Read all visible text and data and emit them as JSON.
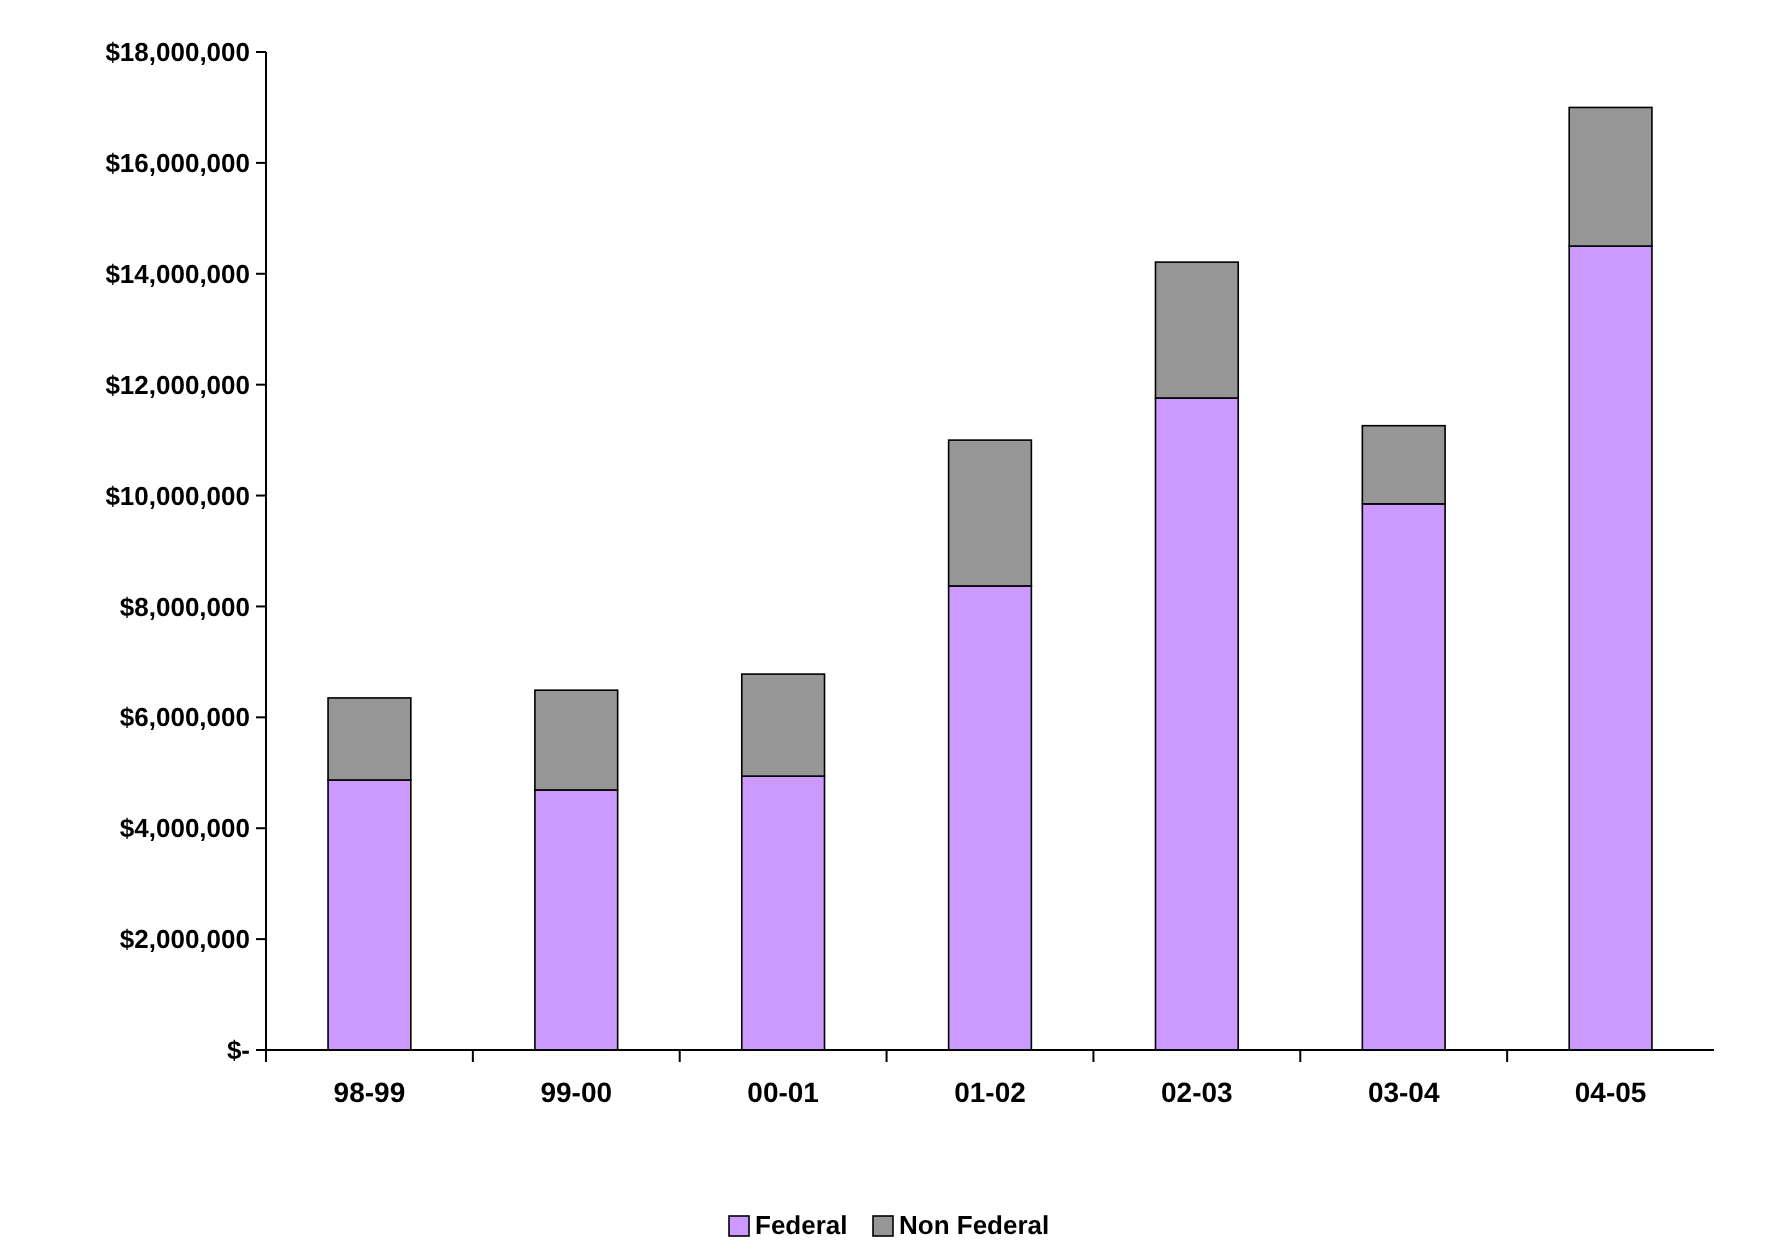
{
  "chart_data": {
    "type": "bar",
    "stacked": true,
    "categories": [
      "98-99",
      "99-00",
      "00-01",
      "01-02",
      "02-03",
      "03-04",
      "04-05"
    ],
    "series": [
      {
        "name": "Federal",
        "color": "#cc99ff",
        "values": [
          4870000,
          4690000,
          4940000,
          8370000,
          11760000,
          9850000,
          14500000
        ]
      },
      {
        "name": "Non Federal",
        "color": "#969696",
        "values": [
          1480000,
          1800000,
          1840000,
          2630000,
          2450000,
          1410000,
          2500000
        ]
      }
    ],
    "ylim": [
      0,
      18000000
    ],
    "yticks": [
      {
        "value": 0,
        "label": "$-"
      },
      {
        "value": 2000000,
        "label": "$2,000,000"
      },
      {
        "value": 4000000,
        "label": "$4,000,000"
      },
      {
        "value": 6000000,
        "label": "$6,000,000"
      },
      {
        "value": 8000000,
        "label": "$8,000,000"
      },
      {
        "value": 10000000,
        "label": "$10,000,000"
      },
      {
        "value": 12000000,
        "label": "$12,000,000"
      },
      {
        "value": 14000000,
        "label": "$14,000,000"
      },
      {
        "value": 16000000,
        "label": "$16,000,000"
      },
      {
        "value": 18000000,
        "label": "$18,000,000"
      }
    ],
    "legend": "bottom"
  }
}
